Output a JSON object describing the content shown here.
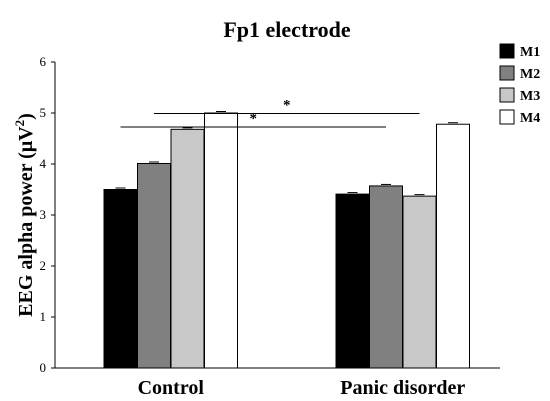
{
  "chart_data": {
    "type": "bar",
    "title": "Fp1 electrode",
    "ylabel_main": "EEG alpha power (μV",
    "ylabel_sup": "2",
    "ylabel_close": ")",
    "xlabel": "",
    "categories": [
      "Control",
      "Panic disorder"
    ],
    "series": [
      {
        "name": "M1",
        "color": "#000000",
        "values": [
          3.5,
          3.41
        ]
      },
      {
        "name": "M2",
        "color": "#808080",
        "values": [
          4.01,
          3.57
        ]
      },
      {
        "name": "M3",
        "color": "#c8c8c8",
        "values": [
          4.68,
          3.37
        ]
      },
      {
        "name": "M4",
        "color": "#ffffff",
        "values": [
          5.0,
          4.78
        ]
      }
    ],
    "ylim": [
      0,
      6
    ],
    "yticks": [
      "0",
      "1",
      "2",
      "3",
      "4",
      "5",
      "6"
    ],
    "grid": false,
    "legend_position": "top-right",
    "significance": [
      {
        "label": "*",
        "from_category": 0,
        "from_series": 0,
        "to_category": 1,
        "to_series": 1
      },
      {
        "label": "*",
        "from_category": 0,
        "from_series": 1,
        "to_category": 1,
        "to_series": 2
      }
    ]
  }
}
